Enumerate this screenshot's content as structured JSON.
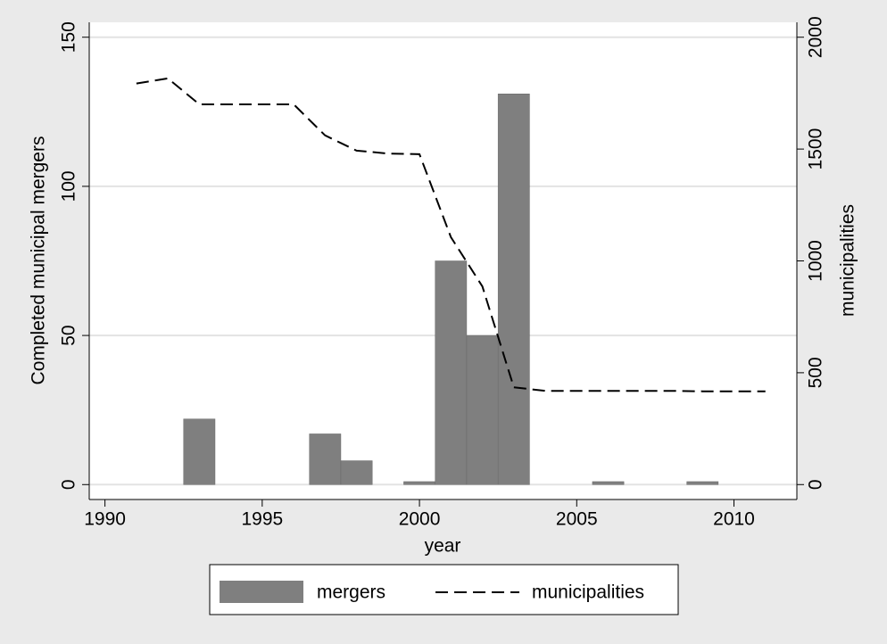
{
  "chart_data": {
    "type": "combo",
    "x_label": "year",
    "y_label": "Completed municipal mergers",
    "y2_label": "municipalities",
    "x": [
      1991,
      1992,
      1993,
      1994,
      1995,
      1996,
      1997,
      1998,
      1999,
      2000,
      2001,
      2002,
      2003,
      2004,
      2005,
      2006,
      2007,
      2008,
      2009,
      2010,
      2011
    ],
    "series": [
      {
        "name": "mergers",
        "type": "bar",
        "color": "#7f7f7f",
        "axis": "y",
        "values": [
          0,
          0,
          22,
          0,
          0,
          0,
          17,
          8,
          0,
          1,
          75,
          50,
          131,
          0,
          0,
          1,
          0,
          0,
          1,
          0,
          0
        ]
      },
      {
        "name": "municipalities",
        "type": "line",
        "color": "#000000",
        "dashed": true,
        "axis": "y2",
        "values": [
          1793,
          1816,
          1700,
          1700,
          1700,
          1700,
          1561,
          1493,
          1480,
          1477,
          1106,
          886,
          435,
          419,
          419,
          419,
          419,
          419,
          417,
          417,
          417
        ]
      }
    ],
    "xlim": [
      1989.5,
      2012
    ],
    "xticks": [
      1990,
      1995,
      2000,
      2005,
      2010
    ],
    "ylim": [
      -5,
      155
    ],
    "yticks": [
      0,
      50,
      100,
      150
    ],
    "y2lim": [
      -66.7,
      2066.7
    ],
    "y2ticks": [
      0,
      500,
      1000,
      1500,
      2000
    ],
    "grid": true,
    "legend": "bottom"
  }
}
